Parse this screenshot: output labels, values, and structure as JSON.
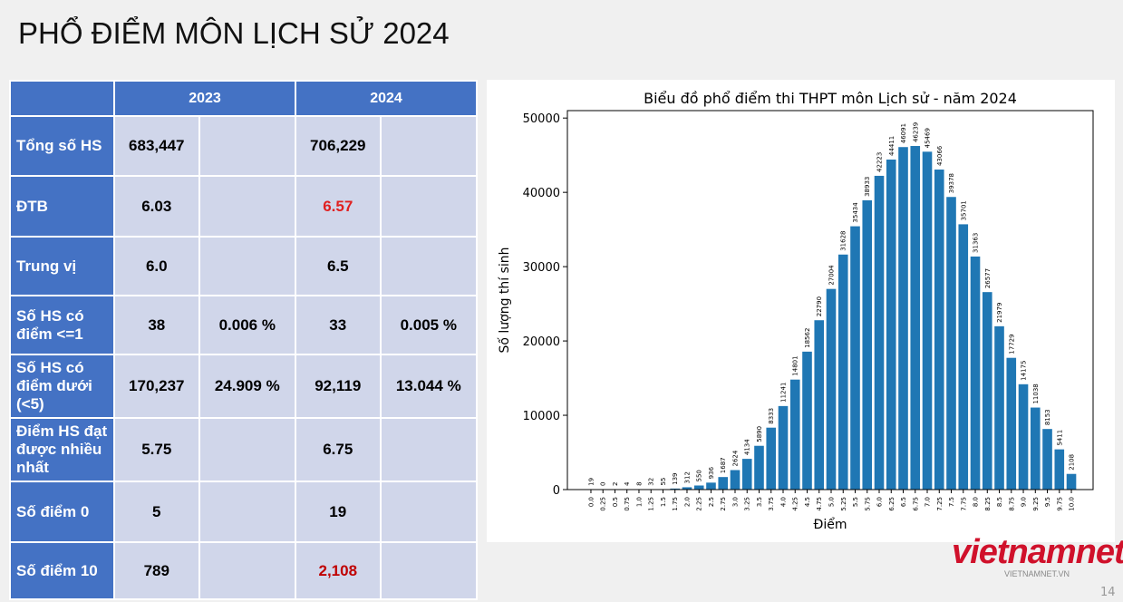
{
  "title": "PHỔ ĐIỂM MÔN LỊCH SỬ 2024",
  "table": {
    "header": [
      "2023",
      "2024"
    ],
    "rows": [
      {
        "label": "Tổng số HS",
        "v2023": [
          "683,447"
        ],
        "v2024": [
          "706,229"
        ]
      },
      {
        "label": "ĐTB",
        "v2023": [
          "6.03"
        ],
        "v2024": [
          "6.57"
        ],
        "color2024": "#e02020"
      },
      {
        "label": "Trung vị",
        "v2023": [
          "6.0"
        ],
        "v2024": [
          "6.5"
        ]
      },
      {
        "label": "Số HS có điểm <=1",
        "v2023": [
          "38",
          "0.006 %"
        ],
        "v2024": [
          "33",
          "0.005 %"
        ]
      },
      {
        "label": "Số HS có điểm dưới (<5)",
        "v2023": [
          "170,237",
          "24.909 %"
        ],
        "v2024": [
          "92,119",
          "13.044 %"
        ]
      },
      {
        "label": "Điểm HS đạt được nhiều nhất",
        "v2023": [
          "5.75"
        ],
        "v2024": [
          "6.75"
        ]
      },
      {
        "label": "Số điểm 0",
        "v2023": [
          "5"
        ],
        "v2024": [
          "19"
        ]
      },
      {
        "label": "Số điểm 10",
        "v2023": [
          "789"
        ],
        "v2024": [
          "2,108"
        ],
        "color2024": "#c00000"
      }
    ]
  },
  "chart_data": {
    "type": "bar",
    "title": "Biểu đồ phổ điểm thi THPT môn Lịch sử - năm 2024",
    "x_label": "Điểm",
    "y_label": "Số lượng thí sinh",
    "categories": [
      "0.0",
      "0.25",
      "0.5",
      "0.75",
      "1.0",
      "1.25",
      "1.5",
      "1.75",
      "2.0",
      "2.25",
      "2.5",
      "2.75",
      "3.0",
      "3.25",
      "3.5",
      "3.75",
      "4.0",
      "4.25",
      "4.5",
      "4.75",
      "5.0",
      "5.25",
      "5.5",
      "5.75",
      "6.0",
      "6.25",
      "6.5",
      "6.75",
      "7.0",
      "7.25",
      "7.5",
      "7.75",
      "8.0",
      "8.25",
      "8.5",
      "8.75",
      "9.0",
      "9.25",
      "9.5",
      "9.75",
      "10.0"
    ],
    "values": [
      19,
      0,
      2,
      4,
      8,
      32,
      55,
      139,
      312,
      550,
      936,
      1687,
      2624,
      4134,
      5890,
      8333,
      11241,
      14801,
      18562,
      22790,
      27004,
      31628,
      35434,
      38933,
      42223,
      44411,
      46091,
      46239,
      45469,
      43066,
      39378,
      35701,
      31363,
      26577,
      21979,
      17729,
      14175,
      11038,
      8153,
      5411,
      2108
    ],
    "color": "#1f77b4",
    "ylim": [
      0,
      51000
    ],
    "yticks": [
      0,
      10000,
      20000,
      30000,
      40000,
      50000
    ]
  },
  "logo": {
    "name": "vietnamnet",
    "url": "VIETNAMNET.VN"
  },
  "page_number": "14"
}
